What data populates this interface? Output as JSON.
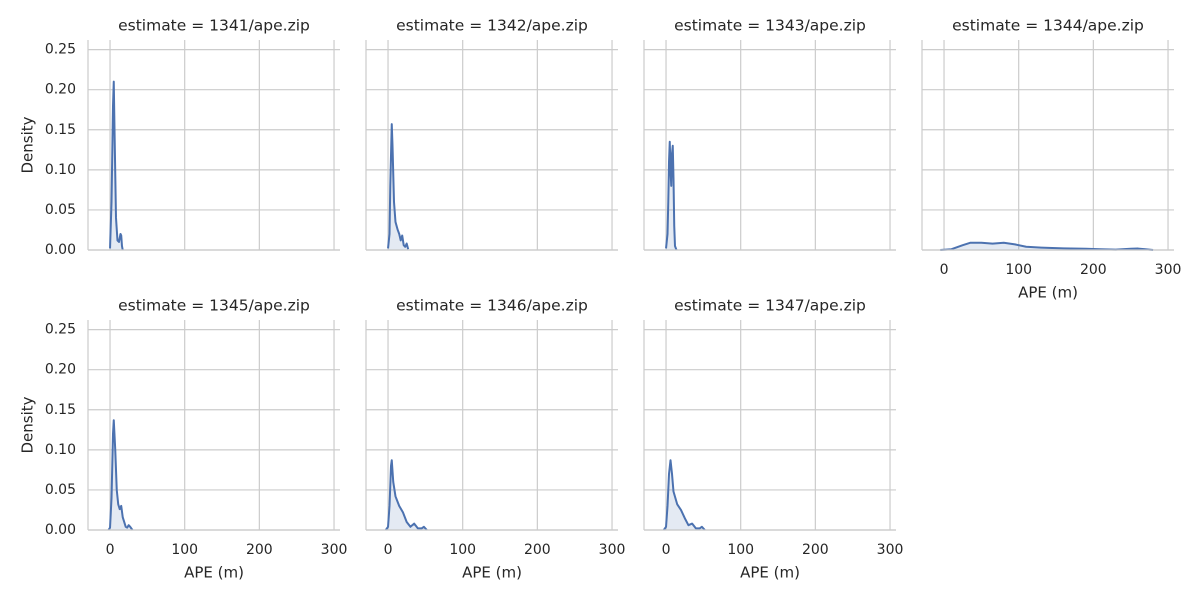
{
  "chart_data": [
    {
      "type": "area",
      "title": "estimate = 1341/ape.zip",
      "ylabel": "Density",
      "xlim": [
        -29.5,
        308
      ],
      "ylim": [
        0,
        0.262
      ],
      "xticks": [
        0,
        100,
        200,
        300
      ],
      "yticks": [
        {
          "value": 0,
          "label": "0.00"
        },
        {
          "value": 0.05,
          "label": "0.05"
        },
        {
          "value": 0.1,
          "label": "0.10"
        },
        {
          "value": 0.15,
          "label": "0.15"
        },
        {
          "value": 0.2,
          "label": "0.20"
        },
        {
          "value": 0.25,
          "label": "0.25"
        }
      ],
      "grid": true,
      "series": [
        {
          "color": "#4c72b0",
          "x": [
            0,
            2,
            4,
            5,
            6,
            8,
            10,
            12,
            14,
            15,
            16,
            17
          ],
          "values": [
            0.002,
            0.06,
            0.18,
            0.21,
            0.15,
            0.04,
            0.012,
            0.01,
            0.02,
            0.018,
            0.005,
            0
          ]
        }
      ]
    },
    {
      "type": "area",
      "title": "estimate = 1342/ape.zip",
      "xlim": [
        -29.5,
        308
      ],
      "ylim": [
        0,
        0.262
      ],
      "xticks": [
        0,
        100,
        200,
        300
      ],
      "yticks": [
        0,
        0.05,
        0.1,
        0.15,
        0.2,
        0.25
      ],
      "grid": true,
      "series": [
        {
          "color": "#4c72b0",
          "x": [
            0,
            2,
            3,
            5,
            6,
            8,
            10,
            13,
            15,
            17,
            19,
            21,
            23,
            25,
            27
          ],
          "values": [
            0.002,
            0.02,
            0.08,
            0.157,
            0.13,
            0.06,
            0.035,
            0.025,
            0.02,
            0.012,
            0.018,
            0.006,
            0.004,
            0.008,
            0.001
          ]
        }
      ]
    },
    {
      "type": "area",
      "title": "estimate = 1343/ape.zip",
      "xlim": [
        -29.5,
        308
      ],
      "ylim": [
        0,
        0.262
      ],
      "xticks": [
        0,
        100,
        200,
        300
      ],
      "yticks": [
        0,
        0.05,
        0.1,
        0.15,
        0.2,
        0.25
      ],
      "grid": true,
      "series": [
        {
          "color": "#4c72b0",
          "x": [
            0,
            2,
            3,
            4,
            5,
            6,
            7,
            8,
            9,
            10,
            11,
            12,
            14
          ],
          "values": [
            0.002,
            0.02,
            0.06,
            0.11,
            0.135,
            0.1,
            0.08,
            0.12,
            0.13,
            0.09,
            0.03,
            0.005,
            0
          ]
        }
      ]
    },
    {
      "type": "area",
      "title": "estimate = 1344/ape.zip",
      "xlabel": "APE (m)",
      "xlim": [
        -29.5,
        308
      ],
      "ylim": [
        0,
        0.262
      ],
      "xticks": [
        0,
        100,
        200,
        300
      ],
      "yticks": [
        0,
        0.05,
        0.1,
        0.15,
        0.2,
        0.25
      ],
      "grid": true,
      "series": [
        {
          "color": "#4c72b0",
          "x": [
            -5,
            10,
            25,
            35,
            50,
            65,
            80,
            95,
            110,
            130,
            160,
            190,
            210,
            230,
            250,
            260,
            280
          ],
          "values": [
            0,
            0.001,
            0.006,
            0.009,
            0.009,
            0.008,
            0.009,
            0.007,
            0.004,
            0.003,
            0.002,
            0.0015,
            0.001,
            0.0005,
            0.0015,
            0.0018,
            0
          ]
        }
      ]
    },
    {
      "type": "area",
      "title": "estimate = 1345/ape.zip",
      "xlabel": "APE (m)",
      "ylabel": "Density",
      "xlim": [
        -29.5,
        308
      ],
      "ylim": [
        0,
        0.262
      ],
      "xticks": [
        0,
        100,
        200,
        300
      ],
      "yticks": [
        {
          "value": 0,
          "label": "0.00"
        },
        {
          "value": 0.05,
          "label": "0.05"
        },
        {
          "value": 0.1,
          "label": "0.10"
        },
        {
          "value": 0.15,
          "label": "0.15"
        },
        {
          "value": 0.2,
          "label": "0.20"
        },
        {
          "value": 0.25,
          "label": "0.25"
        }
      ],
      "grid": true,
      "series": [
        {
          "color": "#4c72b0",
          "x": [
            -2,
            0,
            2,
            4,
            5,
            7,
            9,
            11,
            13,
            15,
            17,
            19,
            21,
            23,
            25,
            27,
            30
          ],
          "values": [
            0,
            0.003,
            0.04,
            0.12,
            0.137,
            0.1,
            0.05,
            0.032,
            0.026,
            0.03,
            0.016,
            0.01,
            0.004,
            0.003,
            0.006,
            0.004,
            0
          ]
        }
      ]
    },
    {
      "type": "area",
      "title": "estimate = 1346/ape.zip",
      "xlabel": "APE (m)",
      "xlim": [
        -29.5,
        308
      ],
      "ylim": [
        0,
        0.262
      ],
      "xticks": [
        0,
        100,
        200,
        300
      ],
      "yticks": [
        0,
        0.05,
        0.1,
        0.15,
        0.2,
        0.25
      ],
      "grid": true,
      "series": [
        {
          "color": "#4c72b0",
          "x": [
            -3,
            0,
            2,
            4,
            5,
            7,
            10,
            15,
            20,
            25,
            30,
            35,
            40,
            45,
            48,
            52
          ],
          "values": [
            0,
            0.004,
            0.03,
            0.08,
            0.087,
            0.06,
            0.042,
            0.03,
            0.022,
            0.01,
            0.004,
            0.008,
            0.002,
            0.002,
            0.004,
            0
          ]
        }
      ]
    },
    {
      "type": "area",
      "title": "estimate = 1347/ape.zip",
      "xlabel": "APE (m)",
      "xlim": [
        -29.5,
        308
      ],
      "ylim": [
        0,
        0.262
      ],
      "xticks": [
        0,
        100,
        200,
        300
      ],
      "yticks": [
        0,
        0.05,
        0.1,
        0.15,
        0.2,
        0.25
      ],
      "grid": true,
      "series": [
        {
          "color": "#4c72b0",
          "x": [
            -3,
            0,
            2,
            4,
            6,
            8,
            10,
            15,
            20,
            25,
            30,
            35,
            40,
            45,
            48,
            52
          ],
          "values": [
            0,
            0.004,
            0.03,
            0.07,
            0.087,
            0.07,
            0.048,
            0.032,
            0.025,
            0.015,
            0.006,
            0.008,
            0.002,
            0.002,
            0.004,
            0
          ]
        }
      ]
    }
  ]
}
